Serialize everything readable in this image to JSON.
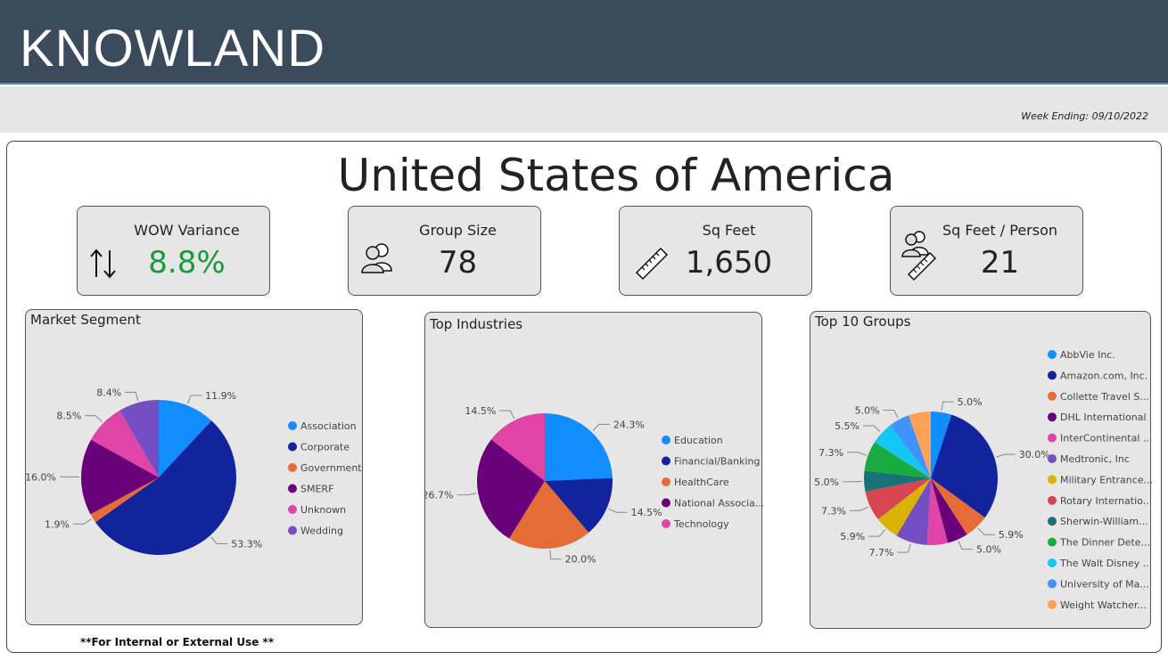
{
  "header": {
    "logo": "KNOWLAND"
  },
  "week_ending": "Week Ending: 09/10/2022",
  "title": "United States of America",
  "kpis": [
    {
      "label": "WOW Variance",
      "value": "8.8%",
      "icon": "up-down-arrows-icon"
    },
    {
      "label": "Group Size",
      "value": "78",
      "icon": "people-icon"
    },
    {
      "label": "Sq Feet",
      "value": "1,650",
      "icon": "ruler-icon"
    },
    {
      "label": "Sq Feet / Person",
      "value": "21",
      "icon": "people-ruler-icon"
    }
  ],
  "footnote": "**For Internal or External Use **",
  "chart_data": [
    {
      "type": "pie",
      "title": "Market Segment",
      "legend": "right",
      "slices": [
        {
          "name": "Association",
          "value": 11.9,
          "label": "11.9%",
          "color": "#118dff"
        },
        {
          "name": "Corporate",
          "value": 53.3,
          "label": "53.3%",
          "color": "#12239e"
        },
        {
          "name": "Government",
          "value": 1.9,
          "label": "1.9%",
          "color": "#e66c37"
        },
        {
          "name": "SMERF",
          "value": 16.0,
          "label": "16.0%",
          "color": "#6b007b"
        },
        {
          "name": "Unknown",
          "value": 8.5,
          "label": "8.5%",
          "color": "#e044a7"
        },
        {
          "name": "Wedding",
          "value": 8.4,
          "label": "8.4%",
          "color": "#744ec2"
        }
      ]
    },
    {
      "type": "pie",
      "title": "Top Industries",
      "legend": "right",
      "slices": [
        {
          "name": "Education",
          "value": 24.3,
          "label": "24.3%",
          "color": "#118dff"
        },
        {
          "name": "Financial/Banking",
          "value": 14.5,
          "label": "14.5%",
          "color": "#12239e"
        },
        {
          "name": "HealthCare",
          "value": 20.0,
          "label": "20.0%",
          "color": "#e66c37"
        },
        {
          "name": "National Associa...",
          "value": 26.7,
          "label": "26.7%",
          "color": "#6b007b"
        },
        {
          "name": "Technology",
          "value": 14.5,
          "label": "14.5%",
          "color": "#e044a7"
        }
      ]
    },
    {
      "type": "pie",
      "title": "Top 10 Groups",
      "legend": "right",
      "slices": [
        {
          "name": "AbbVie Inc.",
          "value": 5.0,
          "label": "5.0%",
          "color": "#118dff"
        },
        {
          "name": "Amazon.com, Inc.",
          "value": 30.0,
          "label": "30.0%",
          "color": "#12239e"
        },
        {
          "name": "Collette Travel S...",
          "value": 5.9,
          "label": "5.9%",
          "color": "#e66c37"
        },
        {
          "name": "DHL International",
          "value": 5.0,
          "label": "5.0%",
          "color": "#6b007b"
        },
        {
          "name": "InterContinental ...",
          "value": 5.0,
          "label": "",
          "color": "#e044a7"
        },
        {
          "name": "Medtronic, Inc",
          "value": 7.7,
          "label": "7.7%",
          "color": "#744ec2"
        },
        {
          "name": "Military Entrance...",
          "value": 5.9,
          "label": "5.9%",
          "color": "#d9b300"
        },
        {
          "name": "Rotary Internatio...",
          "value": 7.3,
          "label": "7.3%",
          "color": "#d64550"
        },
        {
          "name": "Sherwin-William...",
          "value": 5.0,
          "label": "5.0%",
          "color": "#197278"
        },
        {
          "name": "The Dinner Dete...",
          "value": 7.3,
          "label": "7.3%",
          "color": "#1aab40"
        },
        {
          "name": "The Walt Disney ...",
          "value": 5.5,
          "label": "5.5%",
          "color": "#15c6f4"
        },
        {
          "name": "University of Ma...",
          "value": 5.0,
          "label": "5.0%",
          "color": "#4092ff"
        },
        {
          "name": "Weight Watcher...",
          "value": 5.4,
          "label": "",
          "color": "#ffa058"
        }
      ]
    }
  ]
}
